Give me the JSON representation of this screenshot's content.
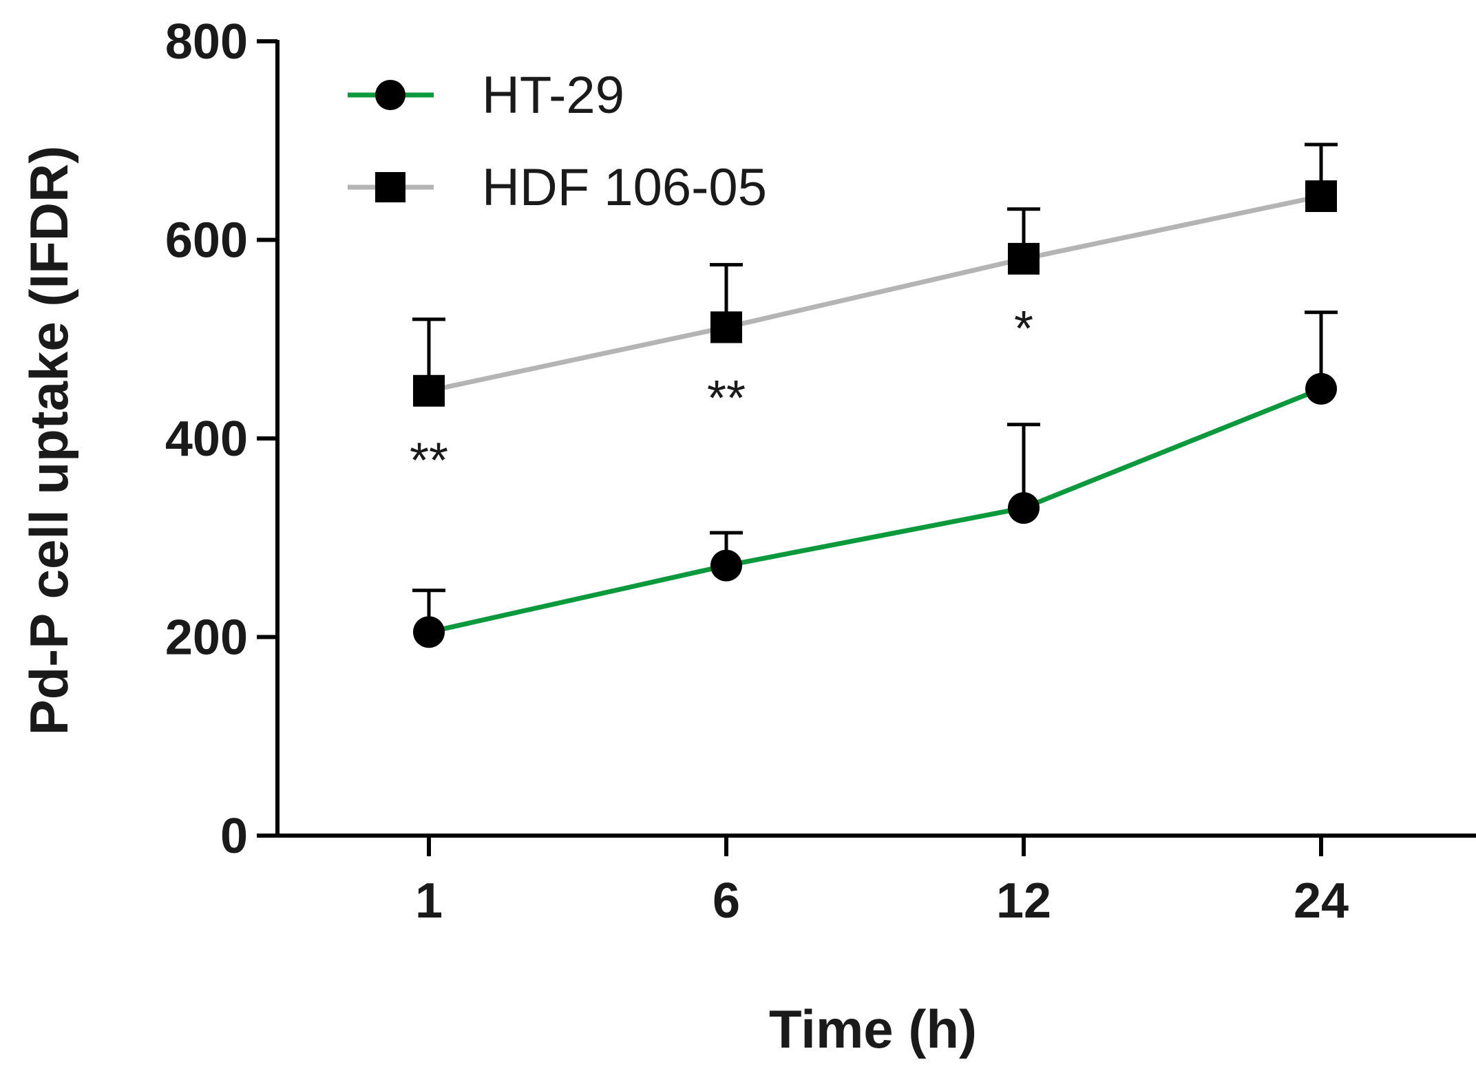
{
  "chart_data": {
    "type": "line",
    "title": "",
    "xlabel": "Time (h)",
    "ylabel": "Pd-P cell uptake (IFDR)",
    "x_categories": [
      "1",
      "6",
      "12",
      "24"
    ],
    "ylim": [
      0,
      800
    ],
    "yticks": [
      0,
      200,
      400,
      600,
      800
    ],
    "grid": false,
    "legend_position": "top-left",
    "series": [
      {
        "name": "HT-29",
        "color": "#0a9a3c",
        "marker": "circle",
        "values": [
          205,
          272,
          330,
          450
        ],
        "errors": [
          42,
          33,
          84,
          77
        ]
      },
      {
        "name": "HDF 106-05",
        "color": "#b4b4b4",
        "marker": "square",
        "values": [
          448,
          512,
          581,
          644
        ],
        "errors": [
          72,
          63,
          50,
          52
        ]
      }
    ],
    "annotations": [
      {
        "text": "**",
        "x": "1",
        "y": 385
      },
      {
        "text": "**",
        "x": "6",
        "y": 448
      },
      {
        "text": "*",
        "x": "12",
        "y": 518
      }
    ]
  }
}
